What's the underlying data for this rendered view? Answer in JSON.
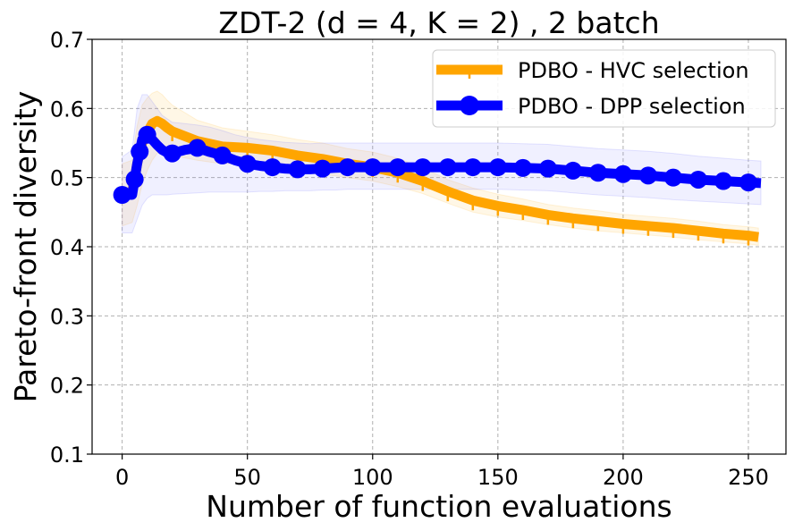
{
  "chart_data": {
    "type": "line",
    "title": "ZDT-2 (d = 4, K = 2) , 2 batch",
    "xlabel": "Number of function evaluations",
    "ylabel": "Pareto-front diversity",
    "xlim": [
      -12,
      265
    ],
    "ylim": [
      0.1,
      0.7
    ],
    "xticks": [
      0,
      50,
      100,
      150,
      200,
      250
    ],
    "yticks": [
      0.1,
      0.2,
      0.3,
      0.4,
      0.5,
      0.6,
      0.7
    ],
    "xtick_labels": [
      "0",
      "50",
      "100",
      "150",
      "200",
      "250"
    ],
    "ytick_labels": [
      "0.1",
      "0.2",
      "0.3",
      "0.4",
      "0.5",
      "0.6",
      "0.7"
    ],
    "grid": true,
    "legend_position": "top-right",
    "series": [
      {
        "name": "PDBO - HVC selection",
        "color": "#FFA500",
        "marker": "tick",
        "x": [
          0,
          4,
          6,
          8,
          10,
          12,
          14,
          16,
          18,
          20,
          30,
          40,
          50,
          60,
          70,
          80,
          90,
          100,
          110,
          120,
          130,
          140,
          150,
          160,
          170,
          180,
          190,
          200,
          210,
          220,
          230,
          240,
          250,
          254
        ],
        "y": [
          0.475,
          0.478,
          0.52,
          0.55,
          0.565,
          0.578,
          0.582,
          0.578,
          0.572,
          0.567,
          0.553,
          0.545,
          0.543,
          0.539,
          0.532,
          0.527,
          0.52,
          0.515,
          0.507,
          0.495,
          0.48,
          0.467,
          0.459,
          0.453,
          0.446,
          0.441,
          0.437,
          0.433,
          0.43,
          0.427,
          0.423,
          0.419,
          0.416,
          0.414
        ],
        "band_low": [
          0.43,
          0.435,
          0.46,
          0.49,
          0.51,
          0.525,
          0.535,
          0.538,
          0.535,
          0.532,
          0.525,
          0.52,
          0.52,
          0.517,
          0.51,
          0.505,
          0.5,
          0.495,
          0.487,
          0.477,
          0.463,
          0.45,
          0.443,
          0.438,
          0.432,
          0.427,
          0.423,
          0.42,
          0.417,
          0.414,
          0.41,
          0.407,
          0.404,
          0.402
        ],
        "band_high": [
          0.52,
          0.525,
          0.575,
          0.605,
          0.615,
          0.622,
          0.625,
          0.62,
          0.612,
          0.605,
          0.583,
          0.572,
          0.567,
          0.562,
          0.555,
          0.55,
          0.542,
          0.537,
          0.528,
          0.514,
          0.497,
          0.485,
          0.476,
          0.469,
          0.461,
          0.456,
          0.452,
          0.447,
          0.444,
          0.441,
          0.437,
          0.432,
          0.429,
          0.427
        ]
      },
      {
        "name": "PDBO - DPP selection",
        "color": "#0000FF",
        "marker": "circle",
        "x": [
          0,
          4,
          6,
          8,
          10,
          12,
          14,
          16,
          18,
          20,
          25,
          30,
          35,
          40,
          45,
          50,
          55,
          60,
          65,
          70,
          75,
          80,
          85,
          90,
          95,
          100,
          110,
          120,
          130,
          140,
          150,
          160,
          170,
          180,
          190,
          200,
          210,
          220,
          230,
          240,
          250,
          255
        ],
        "y": [
          0.475,
          0.475,
          0.52,
          0.555,
          0.562,
          0.555,
          0.547,
          0.54,
          0.536,
          0.535,
          0.54,
          0.543,
          0.537,
          0.532,
          0.525,
          0.52,
          0.517,
          0.515,
          0.513,
          0.512,
          0.512,
          0.513,
          0.514,
          0.515,
          0.515,
          0.515,
          0.515,
          0.515,
          0.515,
          0.515,
          0.515,
          0.514,
          0.513,
          0.51,
          0.507,
          0.505,
          0.503,
          0.5,
          0.497,
          0.495,
          0.493,
          0.492
        ],
        "markers_x": [
          0,
          5,
          7,
          10,
          20,
          30,
          40,
          50,
          60,
          70,
          80,
          90,
          100,
          110,
          120,
          130,
          140,
          150,
          160,
          170,
          180,
          190,
          200,
          210,
          220,
          230,
          240,
          250
        ],
        "band_low": [
          0.42,
          0.42,
          0.44,
          0.46,
          0.47,
          0.475,
          0.475,
          0.475,
          0.475,
          0.476,
          0.477,
          0.478,
          0.479,
          0.479,
          0.479,
          0.479,
          0.48,
          0.48,
          0.481,
          0.481,
          0.481,
          0.482,
          0.482,
          0.483,
          0.483,
          0.483,
          0.483,
          0.483,
          0.483,
          0.483,
          0.483,
          0.482,
          0.481,
          0.478,
          0.475,
          0.473,
          0.471,
          0.468,
          0.466,
          0.464,
          0.462,
          0.461
        ],
        "band_high": [
          0.53,
          0.54,
          0.6,
          0.62,
          0.62,
          0.61,
          0.6,
          0.59,
          0.585,
          0.58,
          0.578,
          0.576,
          0.573,
          0.568,
          0.562,
          0.558,
          0.555,
          0.553,
          0.551,
          0.55,
          0.549,
          0.55,
          0.55,
          0.55,
          0.55,
          0.55,
          0.55,
          0.55,
          0.55,
          0.55,
          0.55,
          0.549,
          0.548,
          0.545,
          0.542,
          0.54,
          0.538,
          0.535,
          0.531,
          0.528,
          0.525,
          0.524
        ]
      }
    ]
  }
}
